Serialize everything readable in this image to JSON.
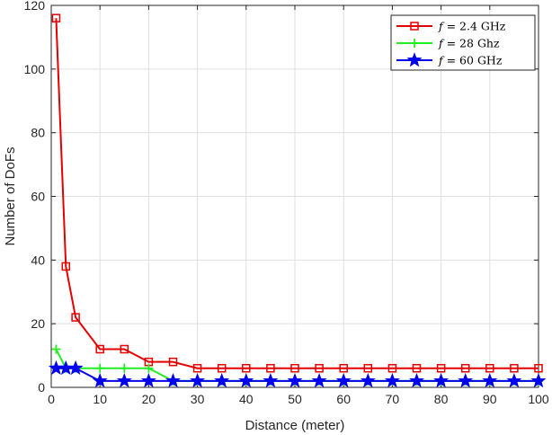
{
  "chart_data": {
    "type": "line",
    "xlabel": "Distance (meter)",
    "ylabel": "Number of DoFs",
    "xlim": [
      0,
      100
    ],
    "ylim": [
      0,
      120
    ],
    "xticks": [
      0,
      10,
      20,
      30,
      40,
      50,
      60,
      70,
      80,
      90,
      100
    ],
    "yticks": [
      0,
      20,
      40,
      60,
      80,
      100,
      120
    ],
    "grid": true,
    "legend_position": "top-right",
    "series": [
      {
        "name": "f = 2.4 GHz",
        "legend_var": "f",
        "legend_rest": " = 2.4 GHz",
        "color": "#e50000",
        "marker": "square",
        "x": [
          1,
          3,
          5,
          10,
          15,
          20,
          25,
          30,
          35,
          40,
          45,
          50,
          55,
          60,
          65,
          70,
          75,
          80,
          85,
          90,
          95,
          100
        ],
        "y": [
          116,
          38,
          22,
          12,
          12,
          8,
          8,
          6,
          6,
          6,
          6,
          6,
          6,
          6,
          6,
          6,
          6,
          6,
          6,
          6,
          6,
          6
        ]
      },
      {
        "name": "f = 28 Ghz",
        "legend_var": "f",
        "legend_rest": " = 28 Ghz",
        "color": "#22ee22",
        "marker": "plus",
        "x": [
          1,
          3,
          5,
          10,
          15,
          20,
          25,
          30,
          35,
          40,
          45,
          50,
          55,
          60,
          65,
          70,
          75,
          80,
          85,
          90,
          95,
          100
        ],
        "y": [
          12,
          6,
          6,
          6,
          6,
          6,
          2,
          2,
          2,
          2,
          2,
          2,
          2,
          2,
          2,
          2,
          2,
          2,
          2,
          2,
          2,
          2
        ]
      },
      {
        "name": "f = 60 GHz",
        "legend_var": "f",
        "legend_rest": " = 60 GHz",
        "color": "#0000ee",
        "marker": "star",
        "x": [
          1,
          3,
          5,
          10,
          15,
          20,
          25,
          30,
          35,
          40,
          45,
          50,
          55,
          60,
          65,
          70,
          75,
          80,
          85,
          90,
          95,
          100
        ],
        "y": [
          6,
          6,
          6,
          2,
          2,
          2,
          2,
          2,
          2,
          2,
          2,
          2,
          2,
          2,
          2,
          2,
          2,
          2,
          2,
          2,
          2,
          2
        ]
      }
    ]
  }
}
